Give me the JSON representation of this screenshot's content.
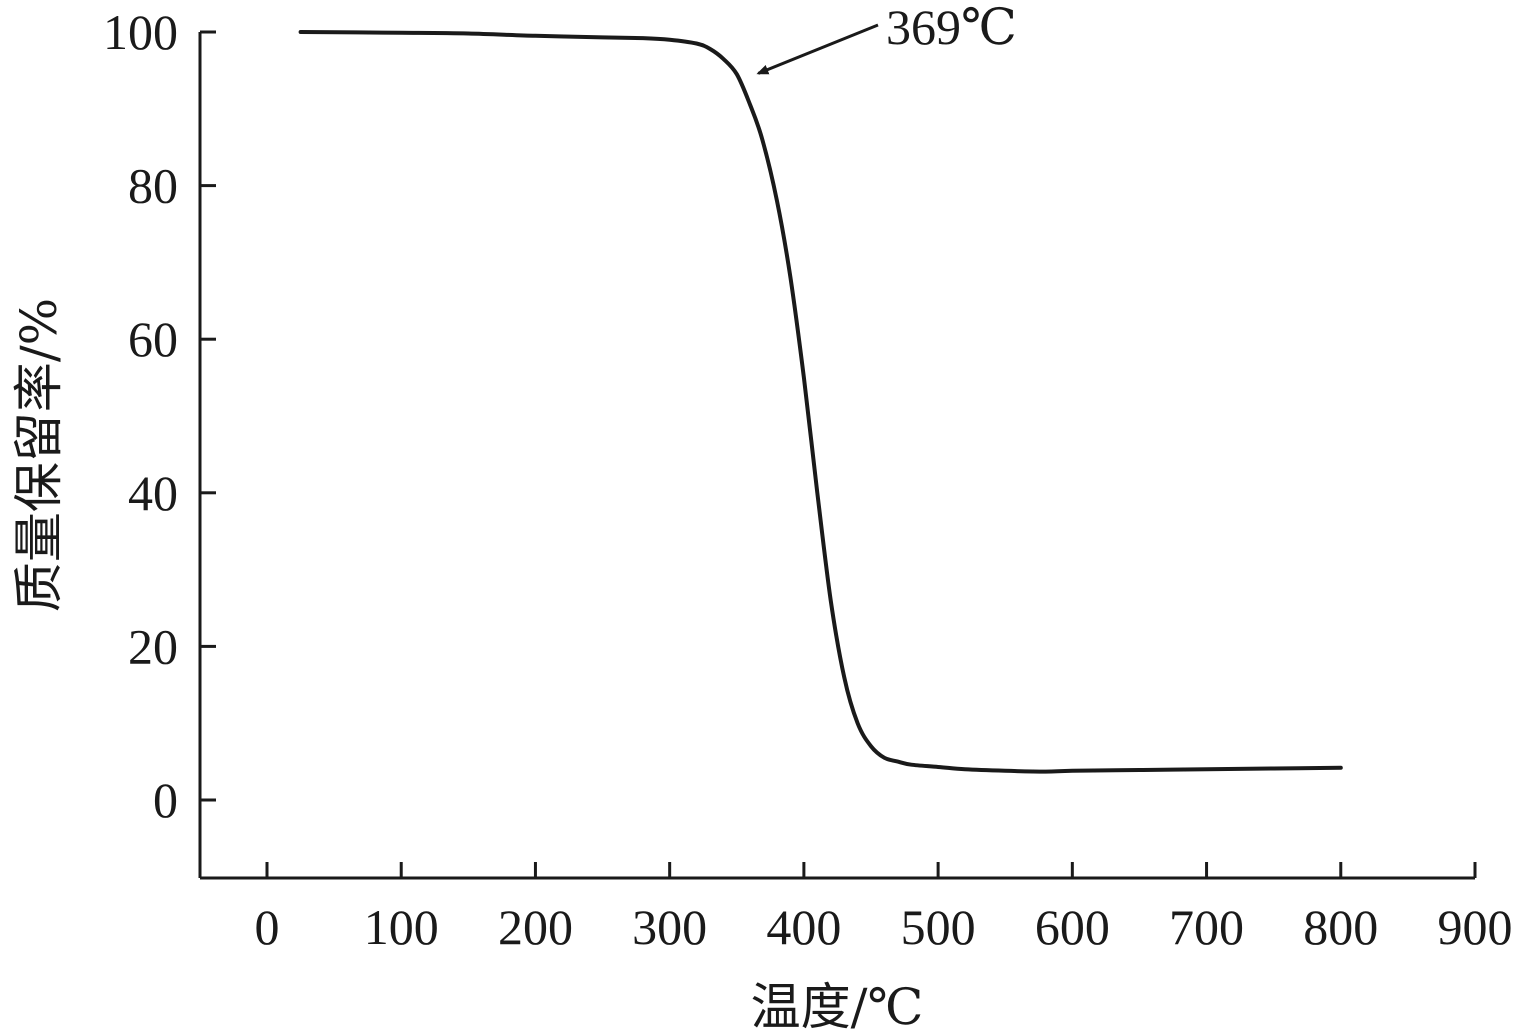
{
  "chart_data": {
    "type": "line",
    "title": "",
    "xlabel": "温度/℃",
    "ylabel": "质量保留率/%",
    "xlim": [
      -50,
      900
    ],
    "ylim": [
      -10,
      100
    ],
    "xticks": [
      0,
      100,
      200,
      300,
      400,
      500,
      600,
      700,
      800,
      900
    ],
    "yticks": [
      0,
      20,
      40,
      60,
      80,
      100
    ],
    "grid": false,
    "legend": "none",
    "line_color": "#1a1a1a",
    "series": [
      {
        "x": [
          25,
          100,
          150,
          200,
          250,
          280,
          300,
          320,
          330,
          340,
          350,
          360,
          369,
          380,
          390,
          400,
          410,
          420,
          430,
          440,
          450,
          460,
          470,
          480,
          500,
          520,
          550,
          580,
          600,
          650,
          700,
          750,
          800
        ],
        "y": [
          100,
          99.9,
          99.8,
          99.5,
          99.3,
          99.2,
          99.0,
          98.5,
          97.8,
          96.5,
          94.5,
          90.5,
          86.0,
          78.0,
          68.0,
          55.0,
          40.0,
          26.0,
          16.0,
          10.0,
          7.0,
          5.5,
          5.0,
          4.6,
          4.3,
          4.0,
          3.8,
          3.7,
          3.8,
          3.9,
          4.0,
          4.1,
          4.2
        ]
      }
    ],
    "annotations": [
      {
        "text": "369℃",
        "x": 369,
        "y": 95,
        "arrow": true
      }
    ]
  }
}
